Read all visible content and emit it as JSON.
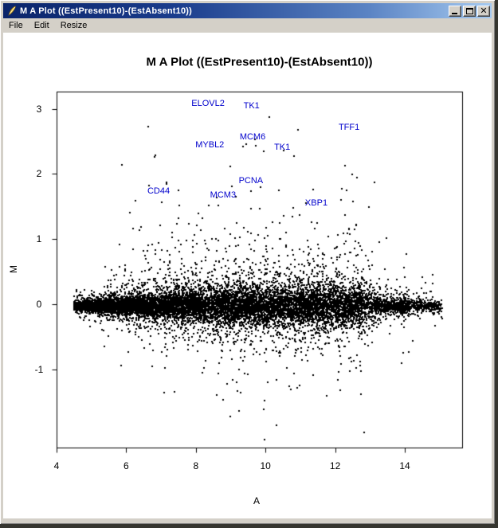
{
  "window": {
    "title": "M A Plot ((EstPresent10)-(EstAbsent10))",
    "icon": "feather-icon",
    "controls": [
      {
        "name": "minimize",
        "label": "Minimize"
      },
      {
        "name": "maximize",
        "label": "Maximize"
      },
      {
        "name": "close",
        "label": "Close"
      }
    ]
  },
  "menu": {
    "items": [
      "File",
      "Edit",
      "Resize"
    ]
  },
  "chart_data": {
    "type": "scatter",
    "title": "M A Plot ((EstPresent10)-(EstAbsent10))",
    "xlabel": "A",
    "ylabel": "M",
    "xticks": [
      4,
      6,
      8,
      10,
      12,
      14
    ],
    "yticks": [
      3,
      2,
      1,
      0,
      -1
    ],
    "xlim": [
      4,
      15.6
    ],
    "ylim": [
      -2.2,
      3.3
    ],
    "grid": false,
    "legend": "none",
    "point_color": "#000000",
    "label_color": "#0000cc",
    "labeled_points": [
      {
        "label": "ELOVL2",
        "A": 8.35,
        "M": 3.08
      },
      {
        "label": "TK1",
        "A": 9.6,
        "M": 3.05
      },
      {
        "label": "TFF1",
        "A": 12.4,
        "M": 2.72
      },
      {
        "label": "MCM6",
        "A": 9.63,
        "M": 2.57
      },
      {
        "label": "MYBL2",
        "A": 8.4,
        "M": 2.45
      },
      {
        "label": "TK1",
        "A": 10.48,
        "M": 2.41
      },
      {
        "label": "PCNA",
        "A": 9.58,
        "M": 1.9
      },
      {
        "label": "CD44",
        "A": 6.93,
        "M": 1.74
      },
      {
        "label": "MCM3",
        "A": 8.78,
        "M": 1.68
      },
      {
        "label": "XBP1",
        "A": 11.46,
        "M": 1.55
      }
    ],
    "point_cloud": {
      "approx_points": 12500,
      "shape": "dense horizontal band centered at M=0 forming a leftward funnel tip near A=4.5, spread widening with A, sparse outliers up to M=3 and down to M=-2.1, thinning beyond A=12.5"
    }
  },
  "colors": {
    "titlebar_left": "#0a246a",
    "titlebar_right": "#a6caf0",
    "chrome": "#d4d0c8",
    "client_bg": "#ffffff",
    "points": "#000000",
    "gene_labels": "#0000cc"
  }
}
